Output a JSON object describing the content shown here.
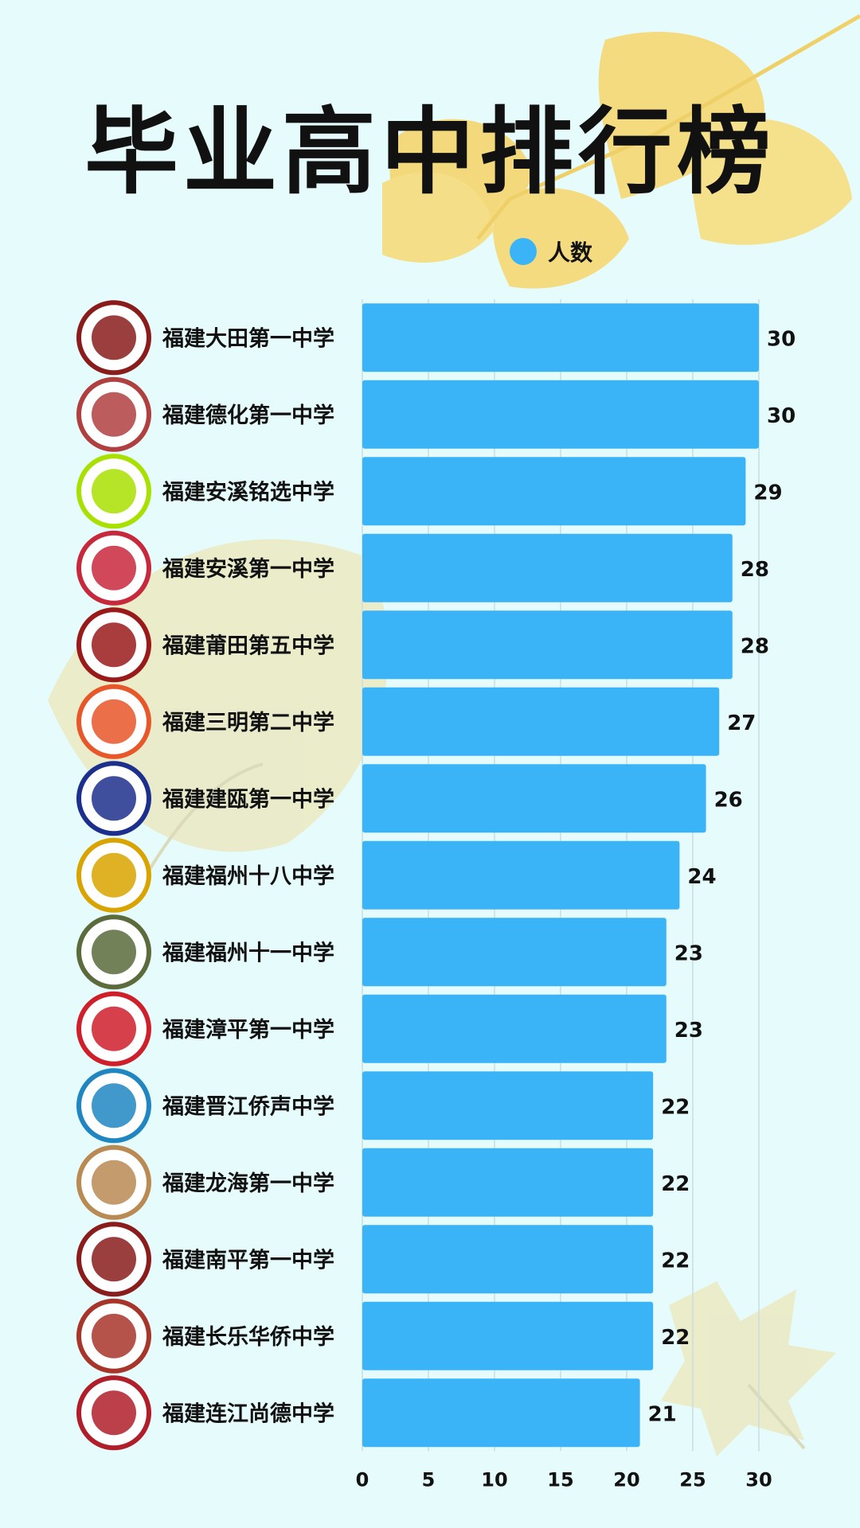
{
  "title": "毕业高中排行榜",
  "legend": {
    "label": "人数",
    "color": "#3ab4f7"
  },
  "chart_data": {
    "type": "bar",
    "orientation": "horizontal",
    "categories": [
      "福建大田第一中学",
      "福建德化第一中学",
      "福建安溪铭选中学",
      "福建安溪第一中学",
      "福建莆田第五中学",
      "福建三明第二中学",
      "福建建瓯第一中学",
      "福建福州十八中学",
      "福建福州十一中学",
      "福建漳平第一中学",
      "福建晋江侨声中学",
      "福建龙海第一中学",
      "福建南平第一中学",
      "福建长乐华侨中学",
      "福建连江尚德中学"
    ],
    "series": [
      {
        "name": "人数",
        "values": [
          30,
          30,
          29,
          28,
          28,
          27,
          26,
          24,
          23,
          23,
          22,
          22,
          22,
          22,
          21
        ]
      }
    ],
    "x_ticks": [
      "0",
      "5",
      "10",
      "15",
      "20",
      "25",
      "30"
    ],
    "xlim": [
      0,
      30
    ],
    "grid": true,
    "legend_position": "top-center",
    "bar_color": "#3ab4f7",
    "logo_colors": [
      "#8a1c1c",
      "#b04040",
      "#a8e000",
      "#c8283c",
      "#9a1a1a",
      "#e8572a",
      "#1d2f8c",
      "#d9a400",
      "#5b6b3c",
      "#cf1f2a",
      "#1f86c2",
      "#b98a52",
      "#8a1c1c",
      "#a8352a",
      "#b01e2a"
    ]
  }
}
